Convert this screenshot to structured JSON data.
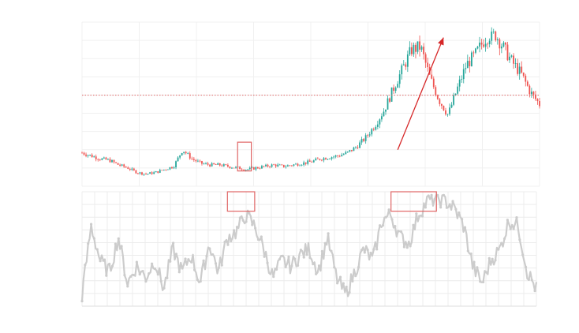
{
  "chart_data": [
    {
      "type": "candlestick",
      "title": "",
      "xlabel": "",
      "ylabel": "",
      "x": [
        0,
        2,
        4,
        6,
        8,
        10,
        12,
        14,
        16,
        18,
        20,
        22,
        24,
        26,
        28,
        30,
        32,
        34,
        36,
        38,
        40,
        42,
        44,
        46,
        48,
        50,
        52,
        54,
        56,
        58,
        60,
        62,
        64,
        66,
        68,
        70,
        72,
        74,
        76,
        78,
        80,
        82,
        84,
        86,
        88,
        90,
        92,
        94,
        96,
        98,
        100
      ],
      "close": [
        20,
        18,
        16,
        15,
        12,
        10,
        7,
        6,
        7,
        9,
        11,
        22,
        16,
        13,
        12,
        12,
        11,
        10,
        9,
        10,
        11,
        12,
        11,
        12,
        13,
        14,
        16,
        17,
        18,
        20,
        24,
        30,
        38,
        48,
        62,
        75,
        88,
        90,
        70,
        55,
        45,
        62,
        78,
        85,
        95,
        100,
        90,
        80,
        72,
        60,
        52
      ],
      "ylim": [
        0,
        100
      ],
      "reference_line": {
        "value": 58,
        "style": "dotted",
        "color": "#e06666"
      },
      "trend_arrow": {
        "from": [
          69,
          22
        ],
        "to": [
          79,
          96
        ],
        "color": "#d62728"
      },
      "highlights": [
        {
          "x": [
            34,
            37
          ],
          "y": [
            8,
            27
          ]
        }
      ],
      "colors": {
        "up": "#26a69a",
        "down": "#ef5350"
      },
      "grid": true
    },
    {
      "type": "line",
      "title": "",
      "xlabel": "",
      "ylabel": "",
      "x": [
        0,
        2,
        4,
        6,
        8,
        10,
        12,
        14,
        16,
        18,
        20,
        22,
        24,
        26,
        28,
        30,
        32,
        34,
        36,
        38,
        40,
        42,
        44,
        46,
        48,
        50,
        52,
        54,
        56,
        58,
        60,
        62,
        64,
        66,
        68,
        70,
        72,
        74,
        76,
        78,
        80,
        82,
        84,
        86,
        88,
        90,
        92,
        94,
        96,
        98,
        100
      ],
      "values": [
        10,
        70,
        40,
        30,
        60,
        20,
        35,
        25,
        40,
        15,
        50,
        30,
        45,
        20,
        55,
        30,
        60,
        65,
        80,
        70,
        50,
        25,
        40,
        35,
        45,
        50,
        30,
        60,
        25,
        10,
        30,
        50,
        40,
        75,
        80,
        60,
        55,
        80,
        92,
        94,
        92,
        85,
        70,
        35,
        20,
        40,
        50,
        75,
        70,
        30,
        15
      ],
      "ylim": [
        0,
        100
      ],
      "highlights": [
        {
          "x": [
            32,
            38
          ],
          "y": [
            83,
            100
          ]
        },
        {
          "x": [
            68,
            78
          ],
          "y": [
            83,
            100
          ]
        }
      ],
      "color": "#cccccc",
      "grid": true
    }
  ]
}
